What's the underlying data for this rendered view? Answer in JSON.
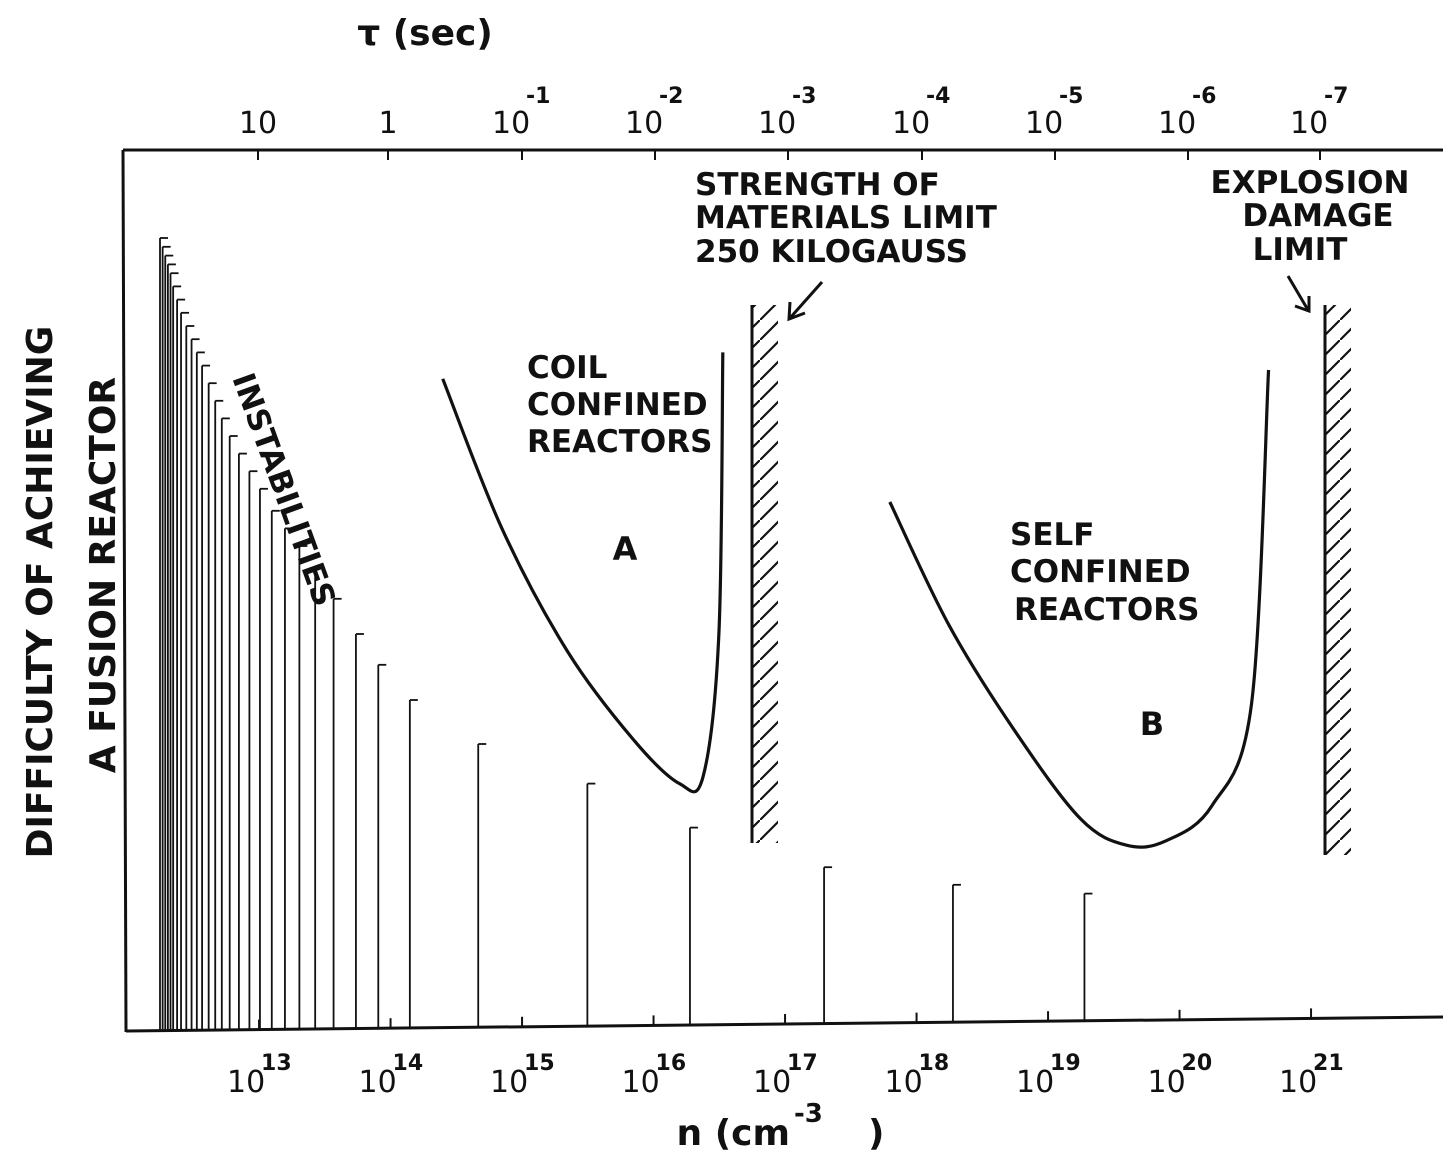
{
  "chart_data": {
    "type": "line",
    "ylabel_lines": [
      "DIFFICULTY OF ACHIEVING",
      "A FUSION REACTOR"
    ],
    "xlabel": "n (cm",
    "xlabel_exp": "-3",
    "xlabel_close": ")",
    "x_scale": "log",
    "bottom_ticks": [
      {
        "base": "10",
        "exp": "13",
        "value": 10000000000000.0
      },
      {
        "base": "10",
        "exp": "14",
        "value": 100000000000000.0
      },
      {
        "base": "10",
        "exp": "15",
        "value": 1000000000000000.0
      },
      {
        "base": "10",
        "exp": "16",
        "value": 1e+16
      },
      {
        "base": "10",
        "exp": "17",
        "value": 1e+17
      },
      {
        "base": "10",
        "exp": "18",
        "value": 1e+18
      },
      {
        "base": "10",
        "exp": "19",
        "value": 1e+19
      },
      {
        "base": "10",
        "exp": "20",
        "value": 1e+20
      },
      {
        "base": "10",
        "exp": "21",
        "value": 1e+21
      }
    ],
    "top_axis_title": "τ (sec)",
    "top_ticks": [
      {
        "base": "10",
        "exp": "",
        "value": 10
      },
      {
        "base": "1",
        "exp": "",
        "value": 1
      },
      {
        "base": "10",
        "exp": "-1",
        "value": 0.1
      },
      {
        "base": "10",
        "exp": "-2",
        "value": 0.01
      },
      {
        "base": "10",
        "exp": "-3",
        "value": 0.001
      },
      {
        "base": "10",
        "exp": "-4",
        "value": 0.0001
      },
      {
        "base": "10",
        "exp": "-5",
        "value": 1e-05
      },
      {
        "base": "10",
        "exp": "-6",
        "value": 1e-06
      },
      {
        "base": "10",
        "exp": "-7",
        "value": 1e-07
      }
    ],
    "instabilities": {
      "label": "INSTABILITIES",
      "bars": [
        {
          "x": 12.3,
          "h": 0.9
        },
        {
          "x": 12.32,
          "h": 0.89
        },
        {
          "x": 12.34,
          "h": 0.88
        },
        {
          "x": 12.36,
          "h": 0.87
        },
        {
          "x": 12.38,
          "h": 0.86
        },
        {
          "x": 12.4,
          "h": 0.845
        },
        {
          "x": 12.43,
          "h": 0.83
        },
        {
          "x": 12.46,
          "h": 0.815
        },
        {
          "x": 12.5,
          "h": 0.8
        },
        {
          "x": 12.54,
          "h": 0.785
        },
        {
          "x": 12.58,
          "h": 0.77
        },
        {
          "x": 12.62,
          "h": 0.755
        },
        {
          "x": 12.67,
          "h": 0.735
        },
        {
          "x": 12.72,
          "h": 0.715
        },
        {
          "x": 12.77,
          "h": 0.695
        },
        {
          "x": 12.83,
          "h": 0.675
        },
        {
          "x": 12.9,
          "h": 0.655
        },
        {
          "x": 12.98,
          "h": 0.635
        },
        {
          "x": 13.06,
          "h": 0.615
        },
        {
          "x": 13.15,
          "h": 0.59
        },
        {
          "x": 13.25,
          "h": 0.57
        },
        {
          "x": 13.36,
          "h": 0.55
        },
        {
          "x": 13.48,
          "h": 0.525
        },
        {
          "x": 13.62,
          "h": 0.49
        },
        {
          "x": 13.79,
          "h": 0.45
        },
        {
          "x": 13.96,
          "h": 0.415
        },
        {
          "x": 14.2,
          "h": 0.375
        },
        {
          "x": 14.72,
          "h": 0.325
        },
        {
          "x": 15.55,
          "h": 0.28
        },
        {
          "x": 16.33,
          "h": 0.23
        },
        {
          "x": 17.35,
          "h": 0.185
        },
        {
          "x": 18.33,
          "h": 0.165
        },
        {
          "x": 19.33,
          "h": 0.155
        }
      ]
    },
    "series": [
      {
        "name": "COIL CONFINED REACTORS",
        "letter": "A",
        "points": [
          [
            14.45,
            0.74
          ],
          [
            14.9,
            0.57
          ],
          [
            15.4,
            0.43
          ],
          [
            15.9,
            0.33
          ],
          [
            16.25,
            0.28
          ],
          [
            16.43,
            0.288
          ],
          [
            16.55,
            0.45
          ],
          [
            16.58,
            0.77
          ]
        ]
      },
      {
        "name": "SELF CONFINED REACTORS",
        "letter": "B",
        "points": [
          [
            17.85,
            0.6
          ],
          [
            18.3,
            0.46
          ],
          [
            18.8,
            0.34
          ],
          [
            19.3,
            0.24
          ],
          [
            19.65,
            0.21
          ],
          [
            19.95,
            0.215
          ],
          [
            20.3,
            0.255
          ],
          [
            20.6,
            0.37
          ],
          [
            20.73,
            0.75
          ]
        ]
      }
    ],
    "limits": [
      {
        "lines": [
          "STRENGTH OF",
          "MATERIALS LIMIT",
          "250 KILOGAUSS"
        ],
        "x": 16.75
      },
      {
        "lines": [
          "EXPLOSION",
          "DAMAGE",
          "LIMIT"
        ],
        "x": 20.95
      }
    ],
    "xlim": [
      12.0,
      21.87
    ],
    "ylim": [
      0,
      1
    ]
  }
}
